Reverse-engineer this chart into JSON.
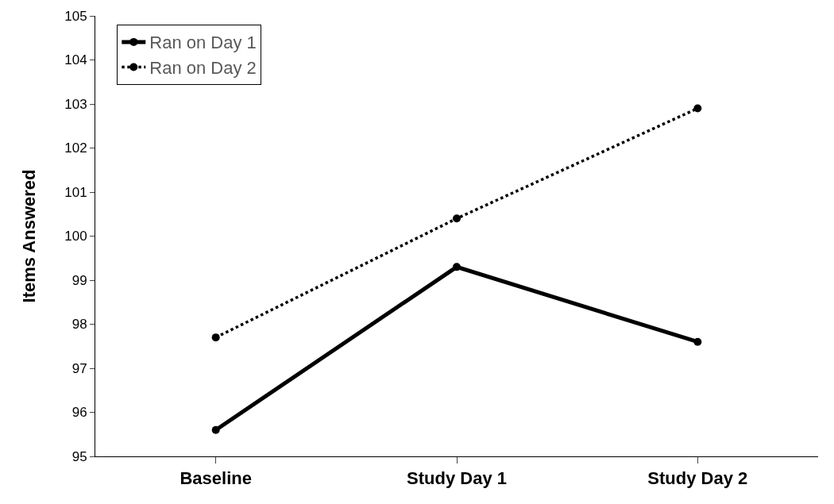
{
  "chart_data": {
    "type": "line",
    "ylabel": "Items Answered",
    "categories": [
      "Baseline",
      "Study Day 1",
      "Study Day 2"
    ],
    "series": [
      {
        "name": "Ran on Day 1",
        "color": "#000000",
        "values": [
          95.6,
          99.3,
          97.6
        ],
        "line_style": "solid"
      },
      {
        "name": "Ran on Day 2",
        "color": "#000000",
        "values": [
          97.7,
          100.4,
          102.9
        ],
        "line_style": "dotted"
      }
    ],
    "ylim": [
      95,
      105
    ],
    "yticks": [
      95,
      96,
      97,
      98,
      99,
      100,
      101,
      102,
      103,
      104,
      105
    ],
    "legend": "top left",
    "marker": "circle"
  }
}
